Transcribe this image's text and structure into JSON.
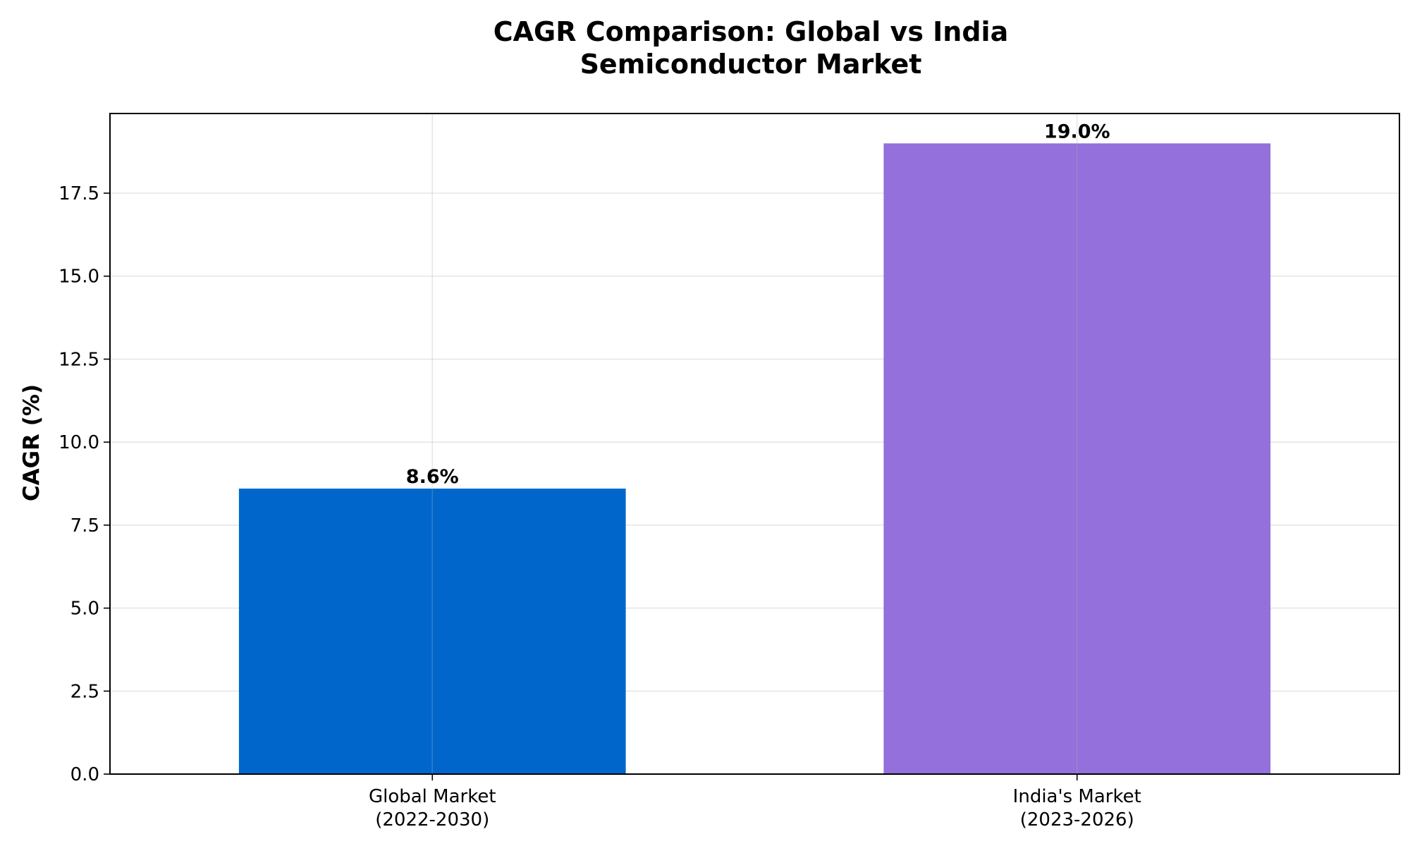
{
  "chart_data": {
    "type": "bar",
    "title_lines": [
      "CAGR Comparison: Global vs India",
      "Semiconductor Market"
    ],
    "xlabel": "",
    "ylabel": "CAGR (%)",
    "categories": [
      [
        "Global Market",
        "(2022-2030)"
      ],
      [
        "India's Market",
        "(2023-2026)"
      ]
    ],
    "values": [
      8.6,
      19.0
    ],
    "data_labels": [
      "8.6%",
      "19.0%"
    ],
    "colors": [
      "#0066cc",
      "#9370db"
    ],
    "ylim": [
      0,
      19.9
    ],
    "yticks": [
      0.0,
      2.5,
      5.0,
      7.5,
      10.0,
      12.5,
      15.0,
      17.5
    ],
    "ytick_labels": [
      "0.0",
      "2.5",
      "5.0",
      "7.5",
      "10.0",
      "12.5",
      "15.0",
      "17.5"
    ],
    "grid": true
  }
}
